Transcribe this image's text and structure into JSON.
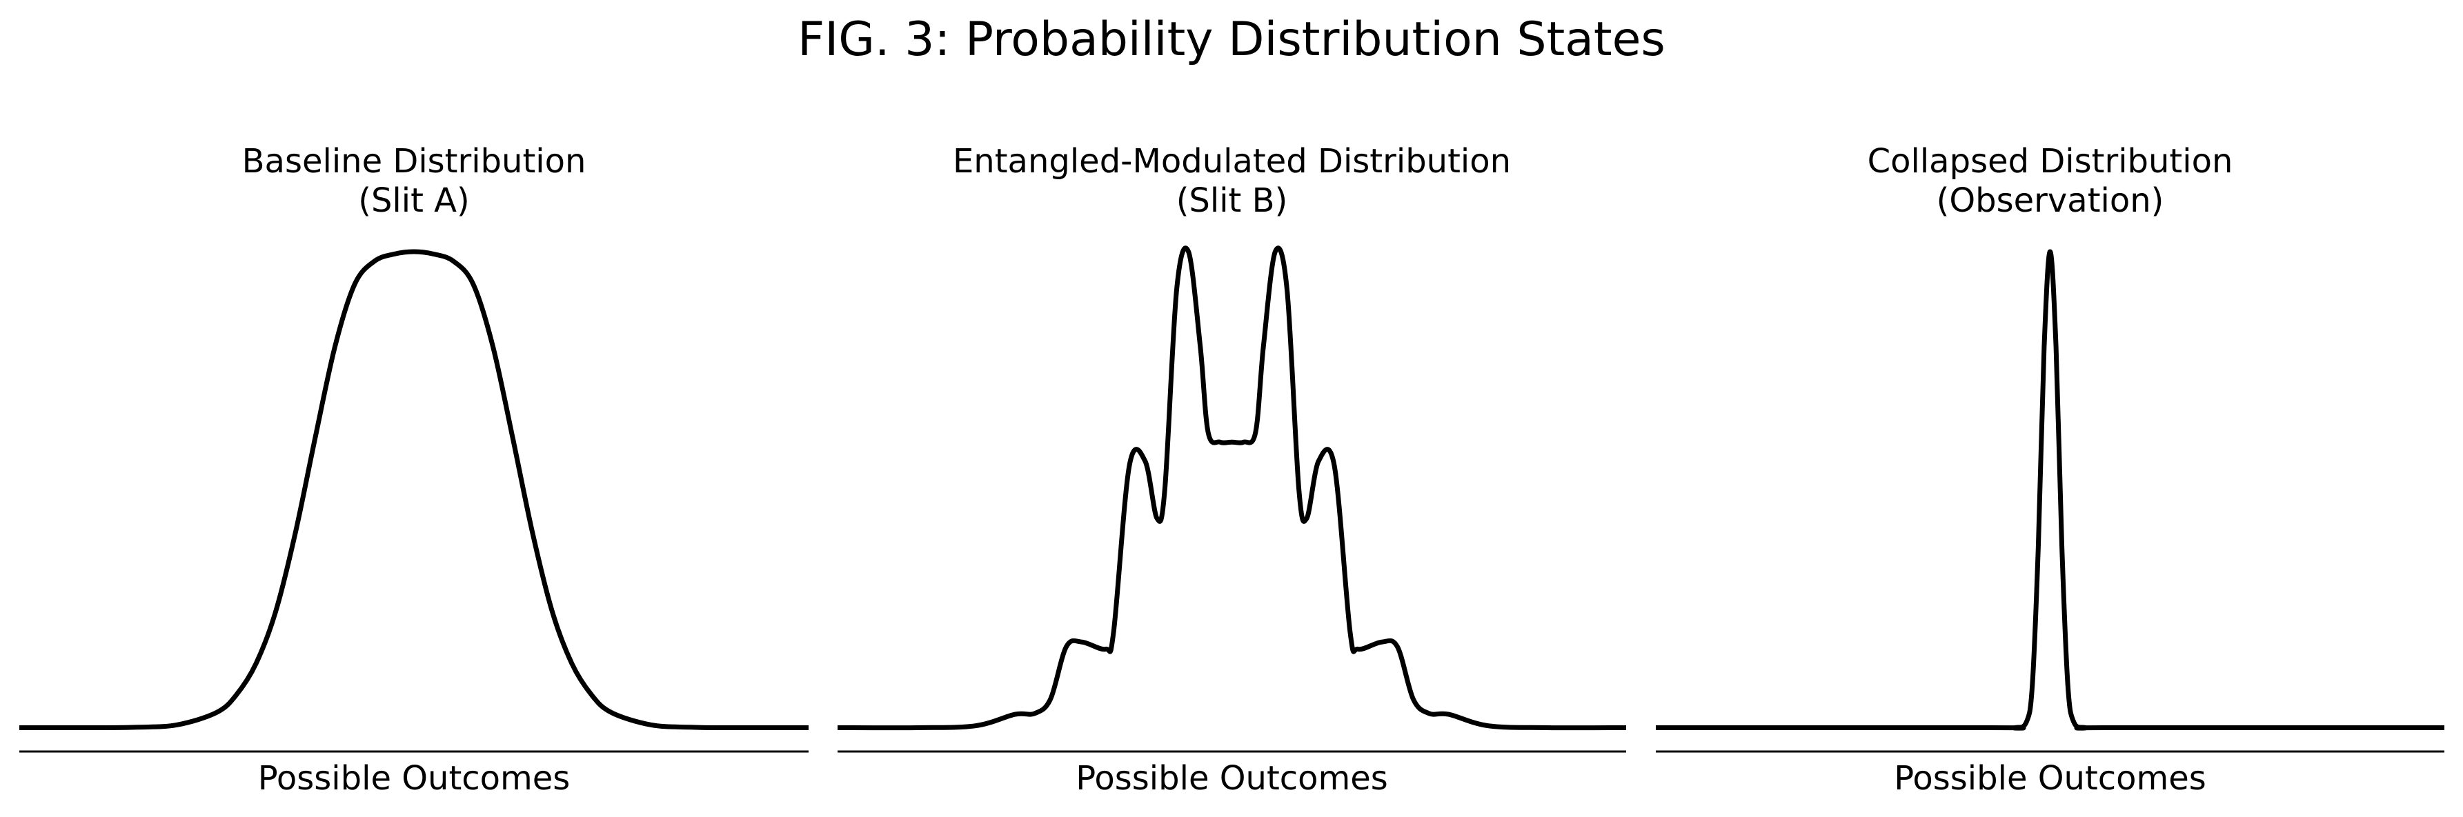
{
  "figure": {
    "title": "FIG. 3: Probability Distribution States",
    "line_color": "#000000",
    "background": "#ffffff"
  },
  "chart_data": [
    {
      "type": "line",
      "title_lines": [
        "Baseline Distribution",
        "(Slit A)"
      ],
      "xlabel": "Possible Outcomes",
      "ylabel": "",
      "xlim": [
        -10,
        10
      ],
      "ylim": [
        -0.05,
        1.0
      ],
      "grid": false,
      "legend": "none",
      "x": [
        -10,
        -9,
        -8,
        -7,
        -6,
        -5,
        -4.5,
        -4,
        -3.5,
        -3,
        -2.5,
        -2,
        -1.5,
        -1,
        -0.5,
        0,
        0.5,
        1,
        1.5,
        2,
        2.5,
        3,
        3.5,
        4,
        4.5,
        5,
        6,
        7,
        8,
        9,
        10
      ],
      "y": [
        0,
        0,
        0,
        0.001,
        0.006,
        0.032,
        0.069,
        0.135,
        0.245,
        0.411,
        0.61,
        0.801,
        0.932,
        0.98,
        0.995,
        1.0,
        0.995,
        0.98,
        0.932,
        0.801,
        0.61,
        0.411,
        0.245,
        0.135,
        0.069,
        0.032,
        0.006,
        0.001,
        0,
        0,
        0
      ]
    },
    {
      "type": "line",
      "title_lines": [
        "Entangled-Modulated Distribution",
        "(Slit B)"
      ],
      "xlabel": "Possible Outcomes",
      "ylabel": "",
      "xlim": [
        -10,
        10
      ],
      "ylim": [
        -0.05,
        1.0
      ],
      "grid": false,
      "legend": "none",
      "x": [
        -10,
        -8,
        -6.5,
        -5.5,
        -5,
        -4.6,
        -4.2,
        -3.8,
        -3.2,
        -3,
        -2.6,
        -2.2,
        -1.9,
        -1.7,
        -1.4,
        -1.1,
        -0.8,
        -0.6,
        -0.3,
        0,
        0.3,
        0.6,
        0.8,
        1.1,
        1.4,
        1.7,
        1.9,
        2.2,
        2.6,
        3,
        3.2,
        3.8,
        4.2,
        4.6,
        5,
        5.5,
        6.5,
        8,
        10
      ],
      "y": [
        0,
        0,
        0.004,
        0.028,
        0.03,
        0.06,
        0.17,
        0.18,
        0.165,
        0.2,
        0.55,
        0.56,
        0.44,
        0.5,
        0.92,
        1.0,
        0.8,
        0.62,
        0.6,
        0.6,
        0.6,
        0.62,
        0.8,
        1.0,
        0.92,
        0.5,
        0.44,
        0.56,
        0.55,
        0.2,
        0.165,
        0.18,
        0.17,
        0.06,
        0.03,
        0.028,
        0.004,
        0,
        0
      ]
    },
    {
      "type": "line",
      "title_lines": [
        "Collapsed Distribution",
        "(Observation)"
      ],
      "xlabel": "Possible Outcomes",
      "ylabel": "",
      "xlim": [
        -10,
        10
      ],
      "ylim": [
        -0.05,
        1.0
      ],
      "grid": false,
      "legend": "none",
      "x": [
        -10,
        -1.5,
        -0.9,
        -0.6,
        -0.45,
        -0.3,
        -0.15,
        0,
        0.15,
        0.3,
        0.45,
        0.6,
        0.9,
        1.5,
        10
      ],
      "y": [
        0,
        0,
        0.0,
        0.012,
        0.09,
        0.38,
        0.8,
        1.0,
        0.8,
        0.38,
        0.09,
        0.012,
        0.0,
        0,
        0
      ]
    }
  ]
}
